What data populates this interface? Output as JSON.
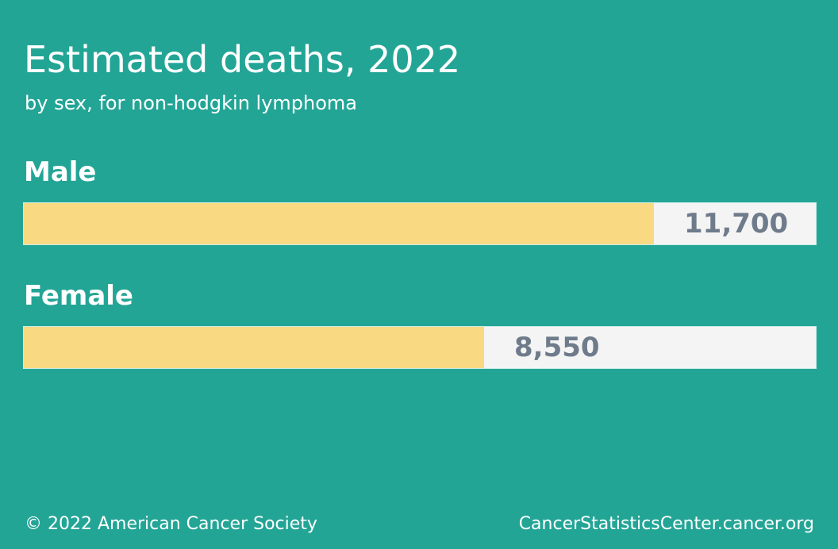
{
  "header": {
    "title": "Estimated deaths, 2022",
    "subtitle": "by sex, for non-hodgkin lymphoma"
  },
  "chart_data": {
    "type": "bar",
    "orientation": "horizontal",
    "categories": [
      "Male",
      "Female"
    ],
    "values": [
      11700,
      8550
    ],
    "value_labels": [
      "11,700",
      "8,550"
    ],
    "xlim": [
      0,
      14700
    ],
    "title": "Estimated deaths, 2022",
    "subtitle": "by sex, for non-hodgkin lymphoma",
    "colors": {
      "fill": "#f9d982",
      "track": "#f4f4f4",
      "value_text": "#6e7b8b",
      "background": "#23a596"
    }
  },
  "footer": {
    "copyright": "© 2022 American Cancer Society",
    "site": "CancerStatisticsCenter.cancer.org"
  }
}
